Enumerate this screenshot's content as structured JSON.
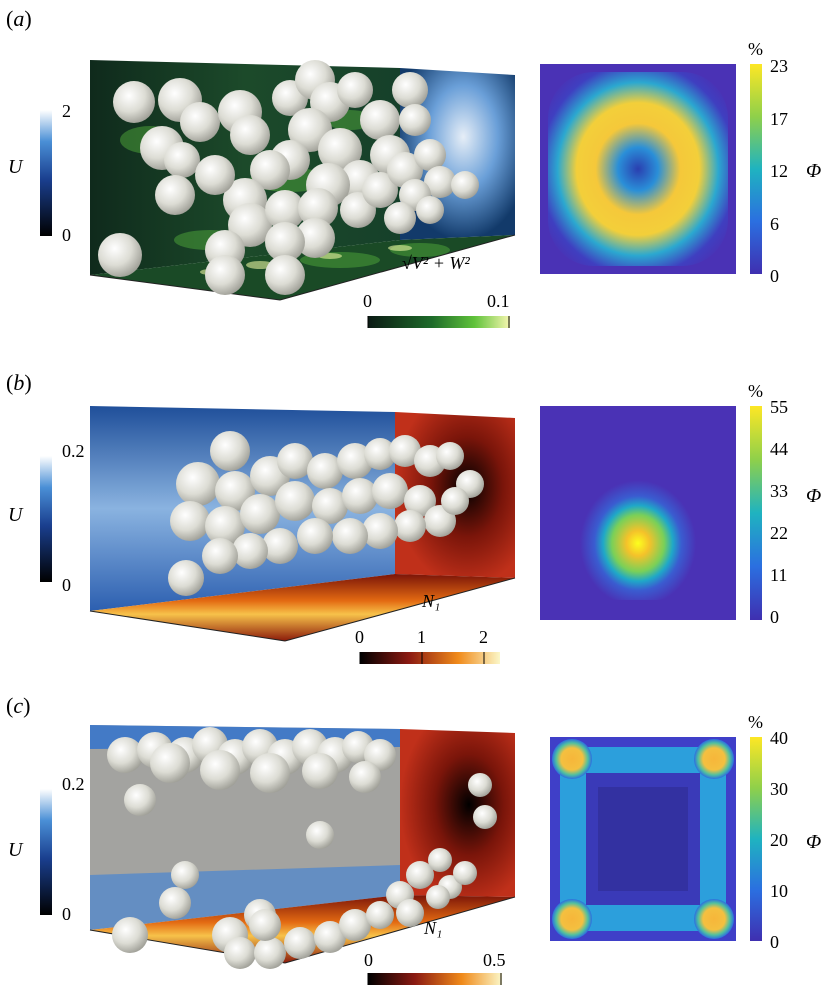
{
  "panels": [
    {
      "label_open": "(",
      "label_letter": "a",
      "label_close": ")",
      "u_bar": {
        "symbol": "U",
        "max": "2",
        "min": "0"
      },
      "inplane_bar": {
        "symbol": "√V² + W²",
        "ticks": [
          "0",
          "0.1"
        ]
      },
      "phi_bar": {
        "unit": "%",
        "symbol": "Φ",
        "ticks": [
          "23",
          "17",
          "12",
          "6",
          "0"
        ]
      }
    },
    {
      "label_open": "(",
      "label_letter": "b",
      "label_close": ")",
      "u_bar": {
        "symbol": "U",
        "max": "0.2",
        "min": "0"
      },
      "inplane_bar": {
        "symbol": "N₁",
        "ticks": [
          "0",
          "1",
          "2"
        ]
      },
      "phi_bar": {
        "unit": "%",
        "symbol": "Φ",
        "ticks": [
          "55",
          "44",
          "33",
          "22",
          "11",
          "0"
        ]
      }
    },
    {
      "label_open": "(",
      "label_letter": "c",
      "label_close": ")",
      "u_bar": {
        "symbol": "U",
        "max": "0.2",
        "min": "0"
      },
      "inplane_bar": {
        "symbol": "N₁",
        "ticks": [
          "0",
          "0.5"
        ]
      },
      "phi_bar": {
        "unit": "%",
        "symbol": "Φ",
        "ticks": [
          "40",
          "30",
          "20",
          "10",
          "0"
        ]
      }
    }
  ],
  "colors": {
    "particle": "#d9d9d2",
    "viridis_low": "#4a32b5",
    "viridis_high": "#fde725",
    "blue_map_low": "#000000",
    "blue_map_high": "#ffffff"
  }
}
